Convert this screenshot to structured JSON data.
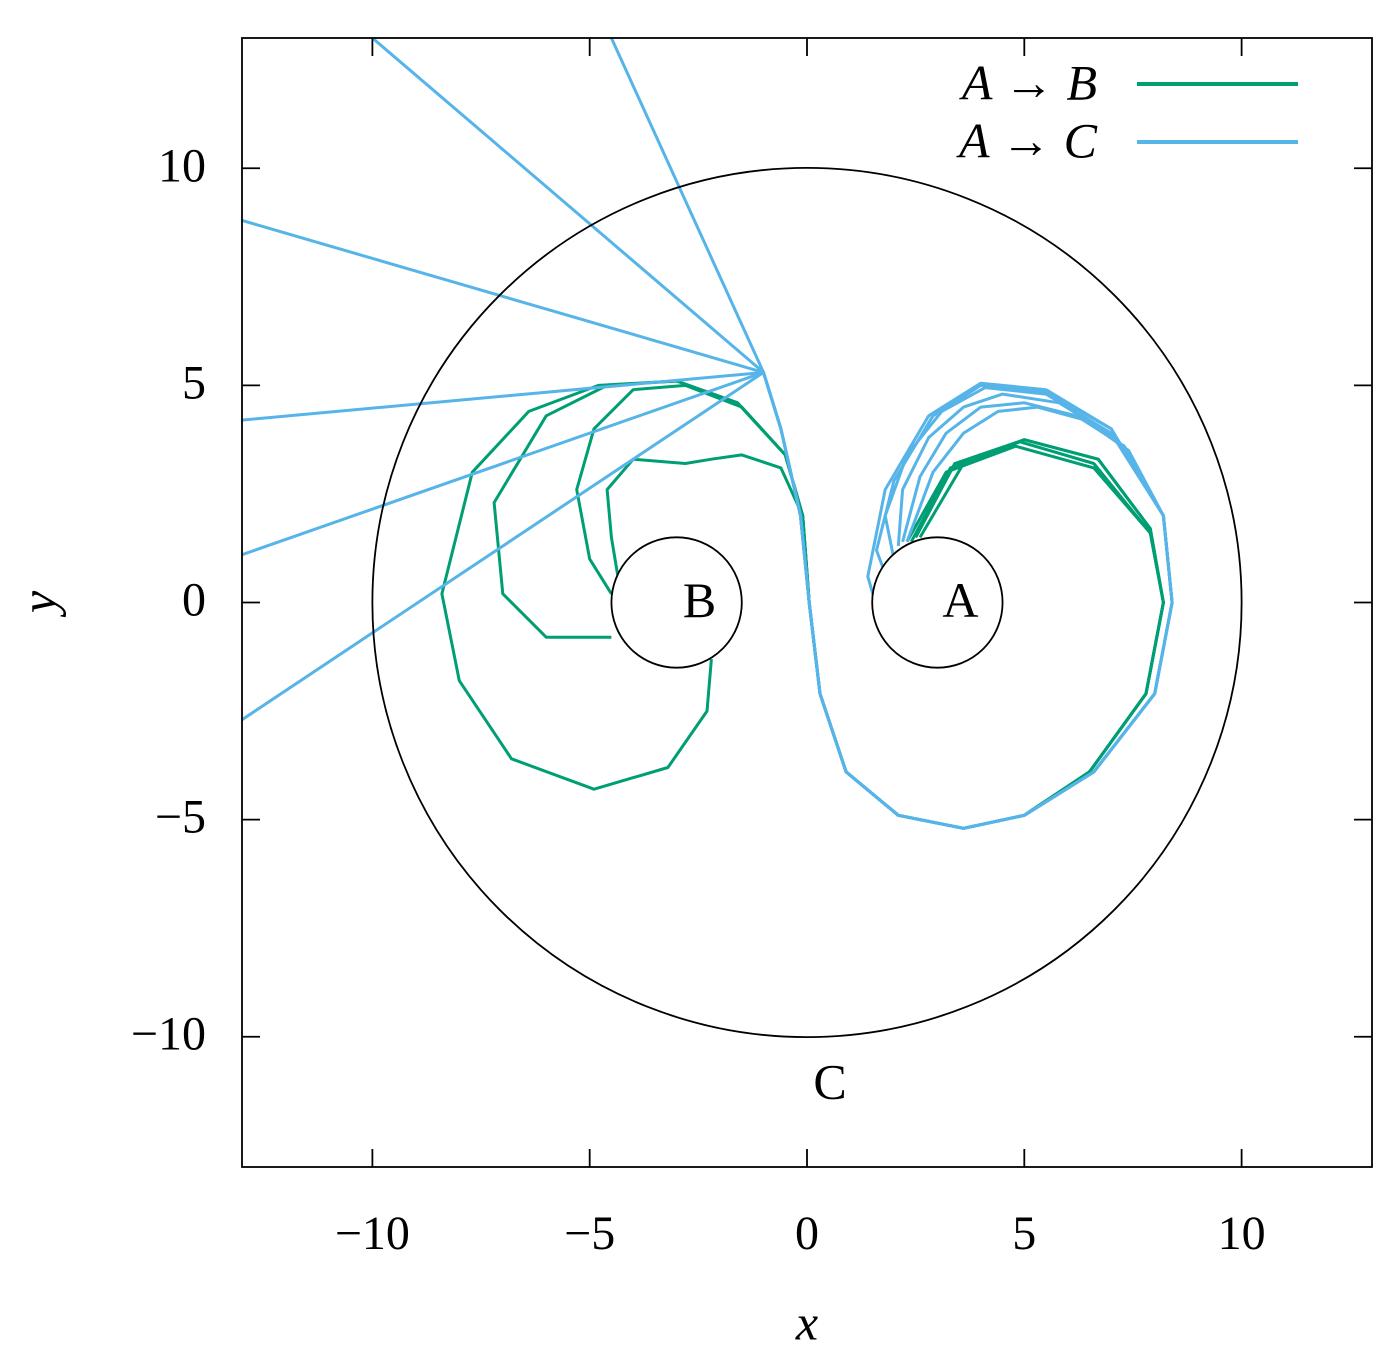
{
  "chart_data": {
    "type": "line",
    "x_label": "x",
    "y_label": "y",
    "xlim": [
      -13,
      13
    ],
    "ylim": [
      -13,
      13
    ],
    "xticks": [
      {
        "value": -10,
        "label": "−10"
      },
      {
        "value": -5,
        "label": "−5"
      },
      0,
      5,
      10
    ],
    "yticks": [
      {
        "value": -10,
        "label": "−10"
      },
      {
        "value": -5,
        "label": "−5"
      },
      0,
      5,
      10
    ],
    "grid": false,
    "legend": "upper right",
    "circles": [
      {
        "label": "A",
        "cx": 3,
        "cy": 0,
        "r": 1.5
      },
      {
        "label": "B",
        "cx": -3,
        "cy": 0,
        "r": 1.5
      },
      {
        "label": "C",
        "cx": 0,
        "cy": 0,
        "r": 10
      }
    ],
    "series": [
      {
        "name": "A → B",
        "color": "#009e73",
        "curves": [
          {
            "x": [
              2.3,
              3.2,
              4.8,
              6.6,
              7.9,
              8.2,
              7.8,
              6.5,
              5,
              3.6,
              2.1,
              0.9,
              0.3,
              0.05,
              -0.1,
              -0.6,
              -1.5,
              -2.2,
              -2.8,
              -4,
              -4.6,
              -4.5,
              -4.3
            ],
            "y": [
              1.4,
              3.0,
              3.6,
              3.1,
              1.6,
              0,
              -2.1,
              -3.9,
              -4.9,
              -5.2,
              -4.9,
              -3.9,
              -2.1,
              0,
              2,
              3.1,
              3.4,
              3.3,
              3.2,
              3.3,
              2.6,
              1.5,
              0.3
            ]
          },
          {
            "x": [
              2.6,
              3.6,
              5.0,
              6.7,
              7.9,
              8.2,
              7.8,
              6.5,
              5,
              3.6,
              2.1,
              0.9,
              0.3,
              0.05,
              -0.1,
              -0.5,
              -1.5,
              -2.8,
              -4,
              -4.9,
              -5.3,
              -5.0,
              -4.5
            ],
            "y": [
              1.5,
              3.2,
              3.75,
              3.3,
              1.7,
              0,
              -2.1,
              -3.9,
              -4.9,
              -5.2,
              -4.9,
              -3.9,
              -2.1,
              0,
              2,
              3.4,
              4.5,
              5.0,
              4.9,
              4.0,
              2.6,
              1.0,
              0.2
            ]
          },
          {
            "x": [
              2.4,
              3.3,
              4.9,
              6.6,
              7.9,
              8.2,
              7.8,
              6.5,
              5,
              3.6,
              2.1,
              0.9,
              0.3,
              0.05,
              -0.1,
              -0.5,
              -1.6,
              -3.0,
              -4.6,
              -6.0,
              -7.2,
              -7.0,
              -6.0,
              -4.5
            ],
            "y": [
              1.4,
              3.1,
              3.7,
              3.2,
              1.6,
              0,
              -2.1,
              -3.9,
              -4.9,
              -5.2,
              -4.9,
              -3.9,
              -2.1,
              0,
              2,
              3.4,
              4.6,
              5.1,
              5.0,
              4.3,
              2.3,
              0.2,
              -0.8,
              -0.8
            ]
          },
          {
            "x": [
              2.5,
              3.4,
              5.0,
              6.7,
              7.9,
              8.2,
              7.8,
              6.5,
              5,
              3.6,
              2.1,
              0.9,
              0.3,
              0.05,
              -0.1,
              -0.5,
              -1.6,
              -3.0,
              -4.8,
              -6.4,
              -7.7,
              -8.4,
              -8.0,
              -6.8,
              -4.9,
              -3.2,
              -2.3,
              -2.2
            ],
            "y": [
              1.5,
              3.2,
              3.75,
              3.3,
              1.7,
              0,
              -2.1,
              -3.9,
              -4.9,
              -5.2,
              -4.9,
              -3.9,
              -2.1,
              0,
              2,
              3.4,
              4.6,
              5.1,
              5.0,
              4.4,
              3.0,
              0.2,
              -1.8,
              -3.6,
              -4.3,
              -3.8,
              -2.5,
              -1.3
            ]
          }
        ]
      },
      {
        "name": "A → C",
        "color": "#56b4e9",
        "curves": [
          {
            "x": [
              1.8,
              1.4,
              1.8,
              2.8,
              4.0,
              5.5,
              7.0,
              8.2,
              8.4,
              8.0,
              6.6,
              5.0,
              3.6,
              2.1,
              0.9,
              0.3,
              0.05,
              -0.15,
              -0.6,
              -1.0,
              -13
            ],
            "y": [
              -0.8,
              0.6,
              2.6,
              4.3,
              5.05,
              4.9,
              4.0,
              2.0,
              0,
              -2.1,
              -3.9,
              -4.9,
              -5.2,
              -4.9,
              -3.9,
              -2.1,
              0,
              2,
              4,
              5.3,
              -2.7
            ]
          },
          {
            "x": [
              1.9,
              1.6,
              2.0,
              2.9,
              4.0,
              5.5,
              7.0,
              8.2,
              8.4,
              8.0,
              6.6,
              5.0,
              3.6,
              2.1,
              0.9,
              0.3,
              0.05,
              -0.15,
              -0.6,
              -1.0,
              -13
            ],
            "y": [
              0.4,
              1.2,
              2.8,
              4.3,
              5.0,
              4.85,
              4.0,
              2.0,
              0,
              -2.1,
              -3.9,
              -4.9,
              -5.2,
              -4.9,
              -3.9,
              -2.1,
              0,
              2,
              4,
              5.3,
              1.1
            ]
          },
          {
            "x": [
              2.0,
              1.8,
              2.3,
              3.1,
              4.1,
              5.5,
              7.0,
              8.2,
              8.4,
              8.0,
              6.6,
              5.0,
              3.6,
              2.1,
              0.9,
              0.3,
              0.05,
              -0.15,
              -0.6,
              -1.0,
              -13
            ],
            "y": [
              1.0,
              2.0,
              3.4,
              4.4,
              4.95,
              4.8,
              3.9,
              2.0,
              0,
              -2.1,
              -3.9,
              -4.9,
              -5.2,
              -4.9,
              -3.9,
              -2.1,
              0,
              2,
              4,
              5.3,
              4.2
            ]
          },
          {
            "x": [
              2.1,
              2.2,
              2.8,
              3.6,
              4.5,
              5.8,
              7.1,
              8.2,
              8.4,
              8.0,
              6.6,
              5.0,
              3.6,
              2.1,
              0.9,
              0.3,
              0.05,
              -0.15,
              -0.6,
              -1.0,
              -13
            ],
            "y": [
              1.3,
              2.6,
              3.8,
              4.5,
              4.8,
              4.6,
              3.8,
              2.0,
              0,
              -2.1,
              -3.9,
              -4.9,
              -5.2,
              -4.9,
              -3.9,
              -2.1,
              0,
              2,
              4,
              5.3,
              8.8
            ]
          },
          {
            "x": [
              2.2,
              2.6,
              3.2,
              4.0,
              5.0,
              6.2,
              7.3,
              8.2,
              8.4,
              8.0,
              6.6,
              5.0,
              3.6,
              2.1,
              0.9,
              0.3,
              0.05,
              -0.15,
              -0.6,
              -1.0,
              -10
            ],
            "y": [
              1.4,
              2.9,
              3.9,
              4.5,
              4.6,
              4.3,
              3.6,
              2.0,
              0,
              -2.1,
              -3.9,
              -4.9,
              -5.2,
              -4.9,
              -3.9,
              -2.1,
              0,
              2,
              4,
              5.3,
              13
            ]
          },
          {
            "x": [
              2.3,
              2.9,
              3.6,
              4.4,
              5.3,
              6.4,
              7.4,
              8.2,
              8.4,
              8.0,
              6.6,
              5.0,
              3.6,
              2.1,
              0.9,
              0.3,
              0.05,
              -0.15,
              -0.6,
              -1.0,
              -4.5
            ],
            "y": [
              1.4,
              3.0,
              3.9,
              4.4,
              4.5,
              4.2,
              3.5,
              2.0,
              0,
              -2.1,
              -3.9,
              -4.9,
              -5.2,
              -4.9,
              -3.9,
              -2.1,
              0,
              2,
              4,
              5.3,
              13
            ]
          }
        ]
      }
    ]
  }
}
